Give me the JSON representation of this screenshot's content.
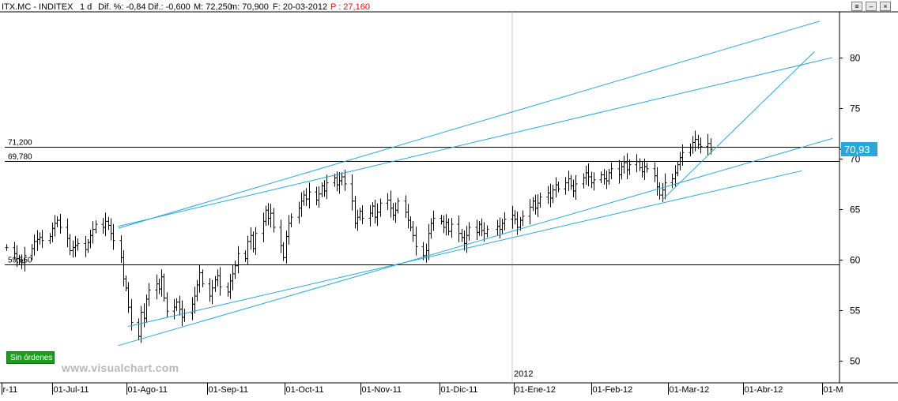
{
  "header": {
    "ticker": "ITX.MC - INDITEX",
    "timeframe": "1 d",
    "dif_pct": "Dif. %: -0,84",
    "dif": "Dif.: -0,600",
    "max": "M: 72,250",
    "min": "m: 70,900",
    "date": "F: 20-03-2012",
    "p_label": "P : 27,160",
    "p_color": "#ff0000"
  },
  "window_buttons": [
    "≡",
    "‒",
    "×"
  ],
  "status_badge": "Sin órdenes",
  "watermark": "www.visualchart.com",
  "year_marker": "2012",
  "price_levels": [
    {
      "label": "71,200",
      "value": 71.2
    },
    {
      "label": "69,780",
      "value": 69.78
    },
    {
      "label": "59,560",
      "value": 59.56
    }
  ],
  "last_price_label": "70,93",
  "colors": {
    "bars": "#000000",
    "trendlines": "#2aa7d6",
    "levels": "#000000",
    "last_price_bg": "#2aa7d6",
    "axis_text": "#000000"
  },
  "chart_data": {
    "type": "ohlc",
    "title": "ITX.MC - INDITEX",
    "ylim": [
      48,
      84
    ],
    "y_ticks": [
      50,
      55,
      60,
      65,
      70,
      75,
      80
    ],
    "x_ticks": [
      "r-11",
      "01-Jul-11",
      "01-Ago-11",
      "01-Sep-11",
      "01-Oct-11",
      "01-Nov-11",
      "01-Dic-11",
      "01-Ene-12",
      "01-Feb-12",
      "01-Mar-12",
      "01-Abr-12",
      "01-M"
    ],
    "x_range": [
      "2011-06-17",
      "2012-05-07"
    ],
    "grid": false,
    "closes": [
      [
        "2011-06-17",
        61.2
      ],
      [
        "2011-06-20",
        60.6
      ],
      [
        "2011-06-21",
        60.1
      ],
      [
        "2011-06-22",
        59.9
      ],
      [
        "2011-06-23",
        59.7
      ],
      [
        "2011-06-24",
        60.4
      ],
      [
        "2011-06-27",
        61.1
      ],
      [
        "2011-06-28",
        61.8
      ],
      [
        "2011-06-29",
        62.0
      ],
      [
        "2011-06-30",
        62.2
      ],
      [
        "2011-07-01",
        61.9
      ],
      [
        "2011-07-04",
        62.3
      ],
      [
        "2011-07-05",
        63.1
      ],
      [
        "2011-07-06",
        63.6
      ],
      [
        "2011-07-07",
        63.9
      ],
      [
        "2011-07-08",
        63.2
      ],
      [
        "2011-07-11",
        62.1
      ],
      [
        "2011-07-12",
        60.9
      ],
      [
        "2011-07-13",
        61.2
      ],
      [
        "2011-07-14",
        61.4
      ],
      [
        "2011-07-15",
        61.6
      ],
      [
        "2011-07-18",
        61.0
      ],
      [
        "2011-07-19",
        61.7
      ],
      [
        "2011-07-20",
        62.4
      ],
      [
        "2011-07-21",
        63.0
      ],
      [
        "2011-07-22",
        63.5
      ],
      [
        "2011-07-25",
        63.2
      ],
      [
        "2011-07-26",
        63.8
      ],
      [
        "2011-07-27",
        63.4
      ],
      [
        "2011-07-28",
        62.6
      ],
      [
        "2011-07-29",
        61.9
      ],
      [
        "2011-08-01",
        60.2
      ],
      [
        "2011-08-02",
        58.1
      ],
      [
        "2011-08-03",
        57.2
      ],
      [
        "2011-08-04",
        55.3
      ],
      [
        "2011-08-05",
        53.8
      ],
      [
        "2011-08-08",
        52.4
      ],
      [
        "2011-08-09",
        54.8
      ],
      [
        "2011-08-10",
        54.2
      ],
      [
        "2011-08-11",
        56.1
      ],
      [
        "2011-08-12",
        57.0
      ],
      [
        "2011-08-15",
        57.6
      ],
      [
        "2011-08-16",
        57.1
      ],
      [
        "2011-08-17",
        58.3
      ],
      [
        "2011-08-18",
        56.2
      ],
      [
        "2011-08-19",
        54.9
      ],
      [
        "2011-08-22",
        55.3
      ],
      [
        "2011-08-23",
        55.8
      ],
      [
        "2011-08-24",
        55.1
      ],
      [
        "2011-08-25",
        54.3
      ],
      [
        "2011-08-26",
        54.7
      ],
      [
        "2011-08-29",
        55.6
      ],
      [
        "2011-08-30",
        56.4
      ],
      [
        "2011-08-31",
        57.5
      ],
      [
        "2011-09-01",
        58.7
      ],
      [
        "2011-09-02",
        57.6
      ],
      [
        "2011-09-05",
        56.4
      ],
      [
        "2011-09-06",
        57.2
      ],
      [
        "2011-09-07",
        58.0
      ],
      [
        "2011-09-08",
        58.4
      ],
      [
        "2011-09-09",
        57.3
      ],
      [
        "2011-09-12",
        56.8
      ],
      [
        "2011-09-13",
        57.9
      ],
      [
        "2011-09-14",
        58.6
      ],
      [
        "2011-09-15",
        59.4
      ],
      [
        "2011-09-16",
        60.6
      ],
      [
        "2011-09-19",
        60.1
      ],
      [
        "2011-09-20",
        61.8
      ],
      [
        "2011-09-21",
        62.4
      ],
      [
        "2011-09-22",
        61.1
      ],
      [
        "2011-09-23",
        62.6
      ],
      [
        "2011-09-26",
        63.8
      ],
      [
        "2011-09-27",
        64.9
      ],
      [
        "2011-09-28",
        64.1
      ],
      [
        "2011-09-29",
        64.6
      ],
      [
        "2011-09-30",
        63.2
      ],
      [
        "2011-10-03",
        61.4
      ],
      [
        "2011-10-04",
        60.2
      ],
      [
        "2011-10-05",
        62.3
      ],
      [
        "2011-10-06",
        63.6
      ],
      [
        "2011-10-07",
        64.2
      ],
      [
        "2011-10-10",
        65.1
      ],
      [
        "2011-10-11",
        65.8
      ],
      [
        "2011-10-12",
        66.4
      ],
      [
        "2011-10-13",
        66.0
      ],
      [
        "2011-10-14",
        66.7
      ],
      [
        "2011-10-17",
        65.9
      ],
      [
        "2011-10-18",
        66.5
      ],
      [
        "2011-10-19",
        67.3
      ],
      [
        "2011-10-20",
        66.8
      ],
      [
        "2011-10-21",
        67.6
      ],
      [
        "2011-10-24",
        68.1
      ],
      [
        "2011-10-25",
        67.4
      ],
      [
        "2011-10-26",
        67.8
      ],
      [
        "2011-10-27",
        68.2
      ],
      [
        "2011-10-28",
        67.5
      ],
      [
        "2011-10-31",
        65.8
      ],
      [
        "2011-11-01",
        63.6
      ],
      [
        "2011-11-02",
        64.2
      ],
      [
        "2011-11-03",
        64.8
      ],
      [
        "2011-11-04",
        64.1
      ],
      [
        "2011-11-07",
        64.6
      ],
      [
        "2011-11-08",
        65.3
      ],
      [
        "2011-11-09",
        64.2
      ],
      [
        "2011-11-10",
        64.7
      ],
      [
        "2011-11-11",
        65.6
      ],
      [
        "2011-11-14",
        65.9
      ],
      [
        "2011-11-15",
        65.1
      ],
      [
        "2011-11-16",
        64.4
      ],
      [
        "2011-11-17",
        64.9
      ],
      [
        "2011-11-18",
        65.8
      ],
      [
        "2011-11-21",
        64.7
      ],
      [
        "2011-11-22",
        63.9
      ],
      [
        "2011-11-23",
        63.2
      ],
      [
        "2011-11-24",
        62.4
      ],
      [
        "2011-11-25",
        61.3
      ],
      [
        "2011-11-28",
        60.4
      ],
      [
        "2011-11-29",
        60.9
      ],
      [
        "2011-11-30",
        62.6
      ],
      [
        "2011-12-01",
        63.6
      ],
      [
        "2011-12-02",
        64.1
      ],
      [
        "2011-12-05",
        63.8
      ],
      [
        "2011-12-06",
        63.2
      ],
      [
        "2011-12-07",
        63.7
      ],
      [
        "2011-12-08",
        62.8
      ],
      [
        "2011-12-09",
        63.5
      ],
      [
        "2011-12-12",
        62.6
      ],
      [
        "2011-12-13",
        62.2
      ],
      [
        "2011-12-14",
        61.6
      ],
      [
        "2011-12-15",
        62.4
      ],
      [
        "2011-12-16",
        63.2
      ],
      [
        "2011-12-19",
        62.7
      ],
      [
        "2011-12-20",
        63.5
      ],
      [
        "2011-12-21",
        62.9
      ],
      [
        "2011-12-22",
        62.6
      ],
      [
        "2011-12-23",
        63.0
      ],
      [
        "2011-12-27",
        63.3
      ],
      [
        "2011-12-28",
        63.0
      ],
      [
        "2011-12-29",
        63.6
      ],
      [
        "2011-12-30",
        64.0
      ],
      [
        "2012-01-02",
        64.4
      ],
      [
        "2012-01-03",
        64.0
      ],
      [
        "2012-01-04",
        63.2
      ],
      [
        "2012-01-05",
        63.9
      ],
      [
        "2012-01-06",
        64.3
      ],
      [
        "2012-01-09",
        65.2
      ],
      [
        "2012-01-10",
        65.8
      ],
      [
        "2012-01-11",
        65.1
      ],
      [
        "2012-01-12",
        65.6
      ],
      [
        "2012-01-13",
        66.2
      ],
      [
        "2012-01-16",
        66.6
      ],
      [
        "2012-01-17",
        66.1
      ],
      [
        "2012-01-18",
        66.9
      ],
      [
        "2012-01-19",
        67.4
      ],
      [
        "2012-01-20",
        67.0
      ],
      [
        "2012-01-23",
        67.6
      ],
      [
        "2012-01-24",
        68.0
      ],
      [
        "2012-01-25",
        67.3
      ],
      [
        "2012-01-26",
        66.8
      ],
      [
        "2012-01-27",
        67.5
      ],
      [
        "2012-01-30",
        68.1
      ],
      [
        "2012-01-31",
        68.6
      ],
      [
        "2012-02-01",
        68.2
      ],
      [
        "2012-02-02",
        67.6
      ],
      [
        "2012-02-03",
        67.9
      ],
      [
        "2012-02-06",
        68.4
      ],
      [
        "2012-02-07",
        68.0
      ],
      [
        "2012-02-08",
        67.8
      ],
      [
        "2012-02-09",
        68.6
      ],
      [
        "2012-02-10",
        69.0
      ],
      [
        "2012-02-13",
        68.4
      ],
      [
        "2012-02-14",
        69.2
      ],
      [
        "2012-02-15",
        69.6
      ],
      [
        "2012-02-16",
        68.9
      ],
      [
        "2012-02-17",
        69.4
      ],
      [
        "2012-02-20",
        69.7
      ],
      [
        "2012-02-21",
        69.1
      ],
      [
        "2012-02-22",
        68.7
      ],
      [
        "2012-02-23",
        69.2
      ],
      [
        "2012-02-24",
        69.0
      ],
      [
        "2012-02-27",
        68.3
      ],
      [
        "2012-02-28",
        67.2
      ],
      [
        "2012-02-29",
        66.4
      ],
      [
        "2012-03-01",
        66.9
      ],
      [
        "2012-03-02",
        67.6
      ],
      [
        "2012-03-05",
        68.0
      ],
      [
        "2012-03-06",
        68.6
      ],
      [
        "2012-03-07",
        69.4
      ],
      [
        "2012-03-08",
        70.1
      ],
      [
        "2012-03-09",
        70.6
      ],
      [
        "2012-03-12",
        71.1
      ],
      [
        "2012-03-13",
        71.6
      ],
      [
        "2012-03-14",
        71.9
      ],
      [
        "2012-03-15",
        71.4
      ],
      [
        "2012-03-16",
        71.2
      ],
      [
        "2012-03-19",
        71.5
      ],
      [
        "2012-03-20",
        70.93
      ]
    ],
    "trendlines": [
      {
        "from": [
          "2011-07-31",
          63.1
        ],
        "to": [
          "2012-05-02",
          83.6
        ]
      },
      {
        "from": [
          "2011-07-31",
          63.3
        ],
        "to": [
          "2012-05-07",
          80.0
        ]
      },
      {
        "from": [
          "2011-07-31",
          51.5
        ],
        "to": [
          "2012-05-07",
          72.0
        ]
      },
      {
        "from": [
          "2011-08-04",
          53.4
        ],
        "to": [
          "2012-04-25",
          68.8
        ]
      },
      {
        "from": [
          "2012-03-01",
          65.9
        ],
        "to": [
          "2012-04-30",
          80.6
        ]
      }
    ]
  }
}
